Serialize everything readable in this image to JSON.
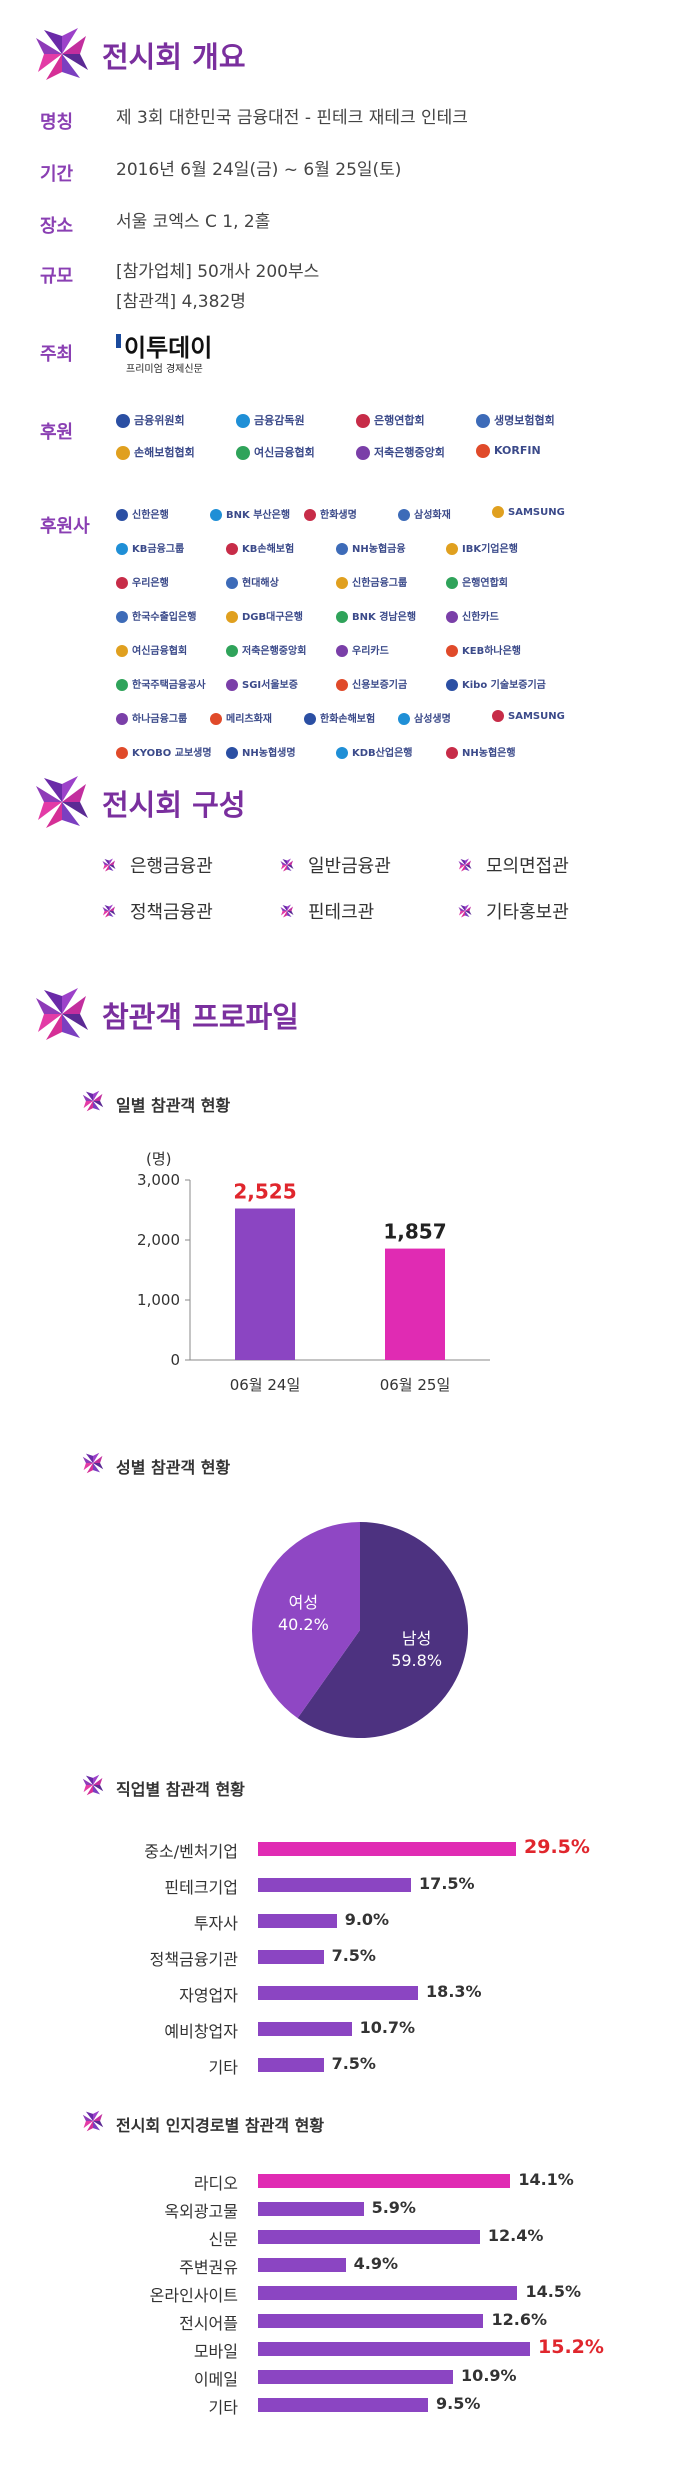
{
  "colors": {
    "accent": "#7a2f9e",
    "purple_bar": "#8b45c2",
    "pink_bar": "#e02bb3",
    "pie_dark": "#4d3280",
    "pie_light": "#8f47c4",
    "highlight_text": "#e0262d"
  },
  "overview": {
    "title": "전시회 개요",
    "rows": [
      {
        "label": "명칭",
        "value": "제 3회 대한민국 금융대전 - 핀테크 재테크 인테크"
      },
      {
        "label": "기간",
        "value": "2016년 6월 24일(금) ~ 6월 25일(토)"
      },
      {
        "label": "장소",
        "value": "서울 코엑스 C 1, 2홀"
      },
      {
        "label": "규모",
        "value": "[참가업체] 50개사 200부스",
        "value2": "[참관객] 4,382명"
      }
    ],
    "host_label": "주최",
    "host_logo_text": "이투데이",
    "host_logo_sub": "프리미엄 경제신문",
    "sponsor_label": "후원",
    "sponsors": [
      "금융위원회",
      "금융감독원",
      "은행연합회",
      "생명보험협회",
      "손해보험협회",
      "여신금융협회",
      "저축은행중앙회",
      "KORFIN"
    ],
    "supporter_label": "후원사",
    "supporters": [
      [
        "신한은행",
        "BNK 부산은행",
        "한화생명",
        "삼성화재",
        "SAMSUNG"
      ],
      [
        "KB금융그룹",
        "KB손해보험",
        "NH농협금융",
        "IBK기업은행"
      ],
      [
        "우리은행",
        "현대해상",
        "신한금융그룹",
        "은행연합회"
      ],
      [
        "한국수출입은행",
        "DGB대구은행",
        "BNK 경남은행",
        "신한카드"
      ],
      [
        "여신금융협회",
        "저축은행중앙회",
        "우리카드",
        "KEB하나은행"
      ],
      [
        "한국주택금융공사",
        "SGI서울보증",
        "신용보증기금",
        "Kibo 기술보증기금"
      ],
      [
        "하나금융그룹",
        "메리츠화재",
        "한화손해보험",
        "삼성생명",
        "SAMSUNG"
      ],
      [
        "KYOBO 교보생명",
        "NH농협생명",
        "KDB산업은행",
        "NH농협은행"
      ]
    ]
  },
  "composition": {
    "title": "전시회 구성",
    "items": [
      "은행금융관",
      "일반금융관",
      "모의면접관",
      "정책금융관",
      "핀테크관",
      "기타홍보관"
    ]
  },
  "profile": {
    "title": "참관객 프로파일",
    "daily_title": "일별 참관객 현황",
    "gender_title": "성별 참관객 현황",
    "job_title": "직업별 참관객 현황",
    "route_title": "전시회 인지경로별 참관객 현황"
  },
  "chart_data": [
    {
      "type": "bar",
      "title": "일별 참관객 현황",
      "unit": "(명)",
      "categories": [
        "06월 24일",
        "06월 25일"
      ],
      "values": [
        2525,
        1857
      ],
      "value_labels": [
        "2,525",
        "1,857"
      ],
      "ylim": [
        0,
        3000
      ],
      "yticks": [
        "0",
        "1,000",
        "2,000",
        "3,000"
      ]
    },
    {
      "type": "pie",
      "title": "성별 참관객 현황",
      "labels": [
        "남성",
        "여성"
      ],
      "values": [
        59.8,
        40.2
      ],
      "value_labels": [
        "59.8%",
        "40.2%"
      ]
    },
    {
      "type": "bar",
      "title": "직업별 참관객 현황",
      "categories": [
        "중소/벤처기업",
        "핀테크기업",
        "투자사",
        "정책금융기관",
        "자영업자",
        "예비창업자",
        "기타"
      ],
      "values": [
        29.5,
        17.5,
        9.0,
        7.5,
        18.3,
        10.7,
        7.5
      ],
      "value_labels": [
        "29.5%",
        "17.5%",
        "9.0%",
        "7.5%",
        "18.3%",
        "10.7%",
        "7.5%"
      ],
      "highlight_index": 0
    },
    {
      "type": "bar",
      "title": "전시회 인지경로별 참관객 현황",
      "categories": [
        "라디오",
        "옥외광고물",
        "신문",
        "주변권유",
        "온라인사이트",
        "전시어플",
        "모바일",
        "이메일",
        "기타"
      ],
      "values": [
        14.1,
        5.9,
        12.4,
        4.9,
        14.5,
        12.6,
        15.2,
        10.9,
        9.5
      ],
      "value_labels": [
        "14.1%",
        "5.9%",
        "12.4%",
        "4.9%",
        "14.5%",
        "12.6%",
        "15.2%",
        "10.9%",
        "9.5%"
      ],
      "pink_index": 0,
      "highlight_index": 6
    }
  ]
}
